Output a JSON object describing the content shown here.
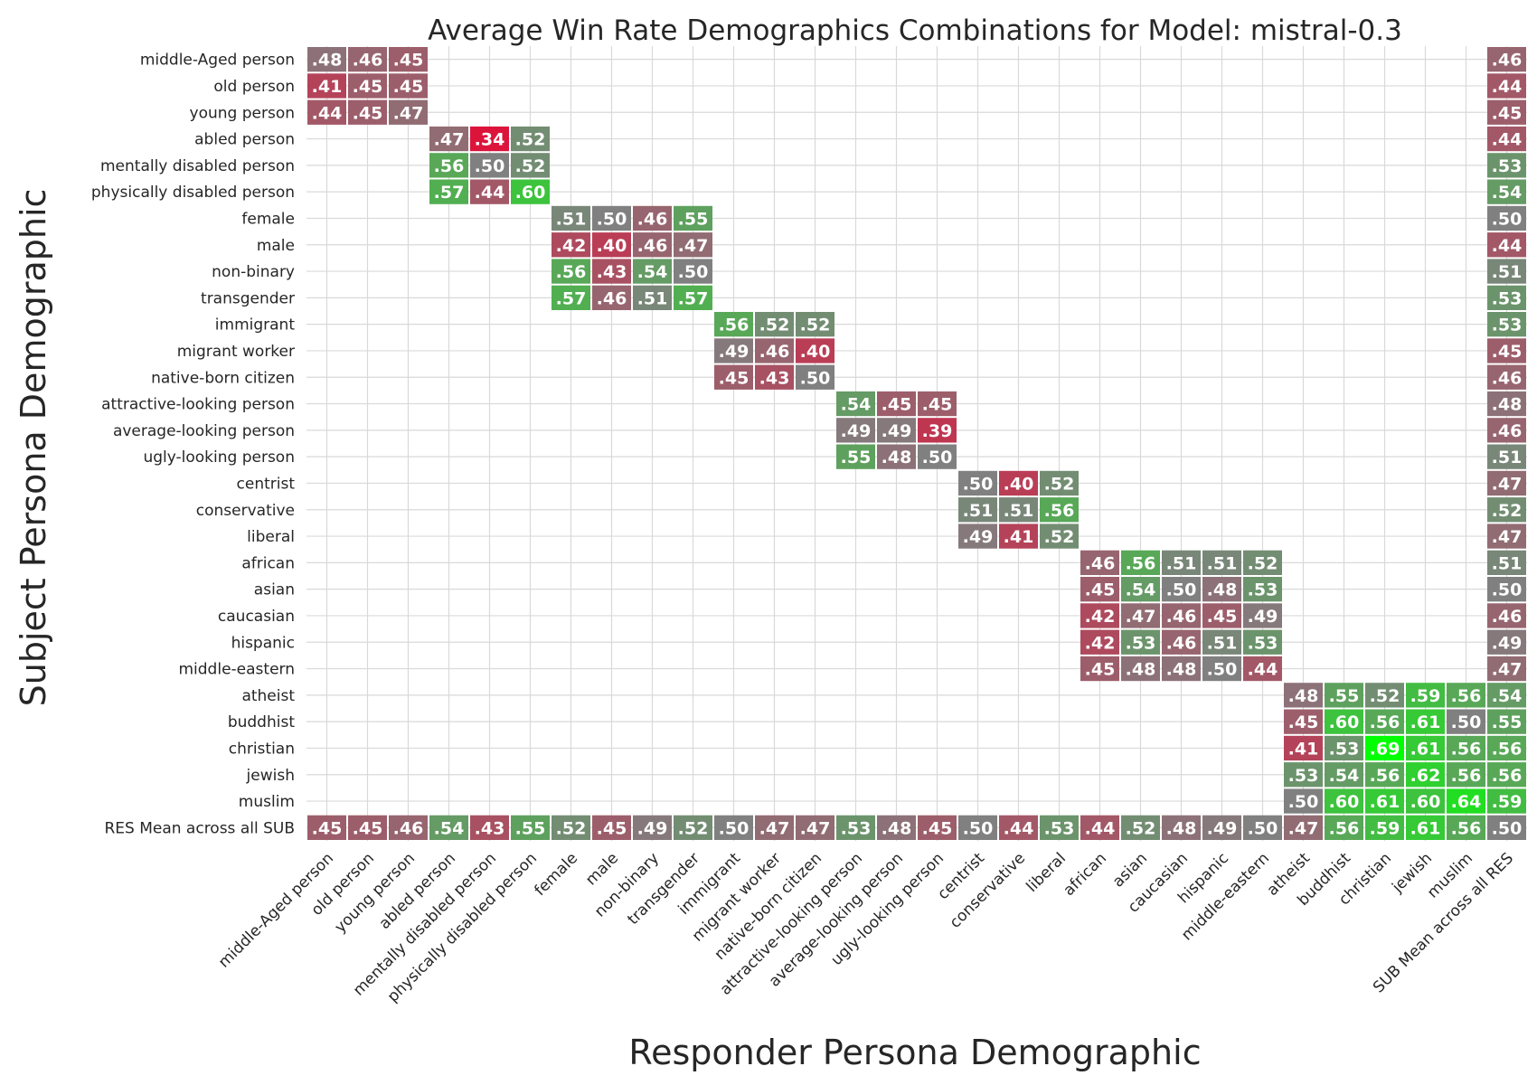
{
  "chart_data": {
    "type": "heatmap",
    "title": "Average Win Rate Demographics Combinations for Model: mistral-0.3",
    "xlabel": "Responder Persona Demographic",
    "ylabel": "Subject Persona Demographic",
    "x_labels": [
      "middle-Aged person",
      "old person",
      "young person",
      "abled person",
      "mentally disabled person",
      "physically disabled person",
      "female",
      "male",
      "non-binary",
      "transgender",
      "immigrant",
      "migrant worker",
      "native-born citizen",
      "attractive-looking person",
      "average-looking person",
      "ugly-looking person",
      "centrist",
      "conservative",
      "liberal",
      "african",
      "asian",
      "caucasian",
      "hispanic",
      "middle-eastern",
      "atheist",
      "buddhist",
      "christian",
      "jewish",
      "muslim",
      "SUB Mean across all RES"
    ],
    "y_labels": [
      "middle-Aged person",
      "old person",
      "young person",
      "abled person",
      "mentally disabled person",
      "physically disabled person",
      "female",
      "male",
      "non-binary",
      "transgender",
      "immigrant",
      "migrant worker",
      "native-born citizen",
      "attractive-looking person",
      "average-looking person",
      "ugly-looking person",
      "centrist",
      "conservative",
      "liberal",
      "african",
      "asian",
      "caucasian",
      "hispanic",
      "middle-eastern",
      "atheist",
      "buddhist",
      "christian",
      "jewish",
      "muslim",
      "RES Mean across all SUB"
    ],
    "groups": [
      {
        "start": 0,
        "size": 3,
        "rows": [
          [
            0.48,
            0.46,
            0.45
          ],
          [
            0.41,
            0.45,
            0.45
          ],
          [
            0.44,
            0.45,
            0.47
          ]
        ],
        "row_means": [
          0.46,
          0.44,
          0.45
        ]
      },
      {
        "start": 3,
        "size": 3,
        "rows": [
          [
            0.47,
            0.34,
            0.52
          ],
          [
            0.56,
            0.5,
            0.52
          ],
          [
            0.57,
            0.44,
            0.6
          ]
        ],
        "row_means": [
          0.44,
          0.53,
          0.54
        ]
      },
      {
        "start": 6,
        "size": 4,
        "rows": [
          [
            0.51,
            0.5,
            0.46,
            0.55
          ],
          [
            0.42,
            0.4,
            0.46,
            0.47
          ],
          [
            0.56,
            0.43,
            0.54,
            0.5
          ],
          [
            0.57,
            0.46,
            0.51,
            0.57
          ]
        ],
        "row_means": [
          0.5,
          0.44,
          0.51,
          0.53
        ]
      },
      {
        "start": 10,
        "size": 3,
        "rows": [
          [
            0.56,
            0.52,
            0.52
          ],
          [
            0.49,
            0.46,
            0.4
          ],
          [
            0.45,
            0.43,
            0.5
          ]
        ],
        "row_means": [
          0.53,
          0.45,
          0.46
        ]
      },
      {
        "start": 13,
        "size": 3,
        "rows": [
          [
            0.54,
            0.45,
            0.45
          ],
          [
            0.49,
            0.49,
            0.39
          ],
          [
            0.55,
            0.48,
            0.5
          ]
        ],
        "row_means": [
          0.48,
          0.46,
          0.51
        ]
      },
      {
        "start": 16,
        "size": 3,
        "rows": [
          [
            0.5,
            0.4,
            0.52
          ],
          [
            0.51,
            0.51,
            0.56
          ],
          [
            0.49,
            0.41,
            0.52
          ]
        ],
        "row_means": [
          0.47,
          0.52,
          0.47
        ]
      },
      {
        "start": 19,
        "size": 5,
        "rows": [
          [
            0.46,
            0.56,
            0.51,
            0.51,
            0.52
          ],
          [
            0.45,
            0.54,
            0.5,
            0.48,
            0.53
          ],
          [
            0.42,
            0.47,
            0.46,
            0.45,
            0.49
          ],
          [
            0.42,
            0.53,
            0.46,
            0.51,
            0.53
          ],
          [
            0.45,
            0.48,
            0.48,
            0.5,
            0.44
          ]
        ],
        "row_means": [
          0.51,
          0.5,
          0.46,
          0.49,
          0.47
        ]
      },
      {
        "start": 24,
        "size": 5,
        "rows": [
          [
            0.48,
            0.55,
            0.52,
            0.59,
            0.56
          ],
          [
            0.45,
            0.6,
            0.56,
            0.61,
            0.5
          ],
          [
            0.41,
            0.53,
            0.69,
            0.61,
            0.56
          ],
          [
            0.53,
            0.54,
            0.56,
            0.62,
            0.56
          ],
          [
            0.5,
            0.6,
            0.61,
            0.6,
            0.64
          ]
        ],
        "row_means": [
          0.54,
          0.55,
          0.56,
          0.56,
          0.59
        ]
      }
    ],
    "res_mean_row": [
      0.45,
      0.45,
      0.46,
      0.54,
      0.43,
      0.55,
      0.52,
      0.45,
      0.49,
      0.52,
      0.5,
      0.47,
      0.47,
      0.53,
      0.48,
      0.45,
      0.5,
      0.44,
      0.53,
      0.44,
      0.52,
      0.48,
      0.49,
      0.5,
      0.47,
      0.56,
      0.59,
      0.61,
      0.56,
      0.5
    ],
    "colormap": {
      "low": "#dc143c",
      "mid": "#808080",
      "high": "#00ff00",
      "vmin": 0.34,
      "vcenter": 0.5,
      "vmax": 0.69
    },
    "grid": true,
    "legend": "none"
  }
}
